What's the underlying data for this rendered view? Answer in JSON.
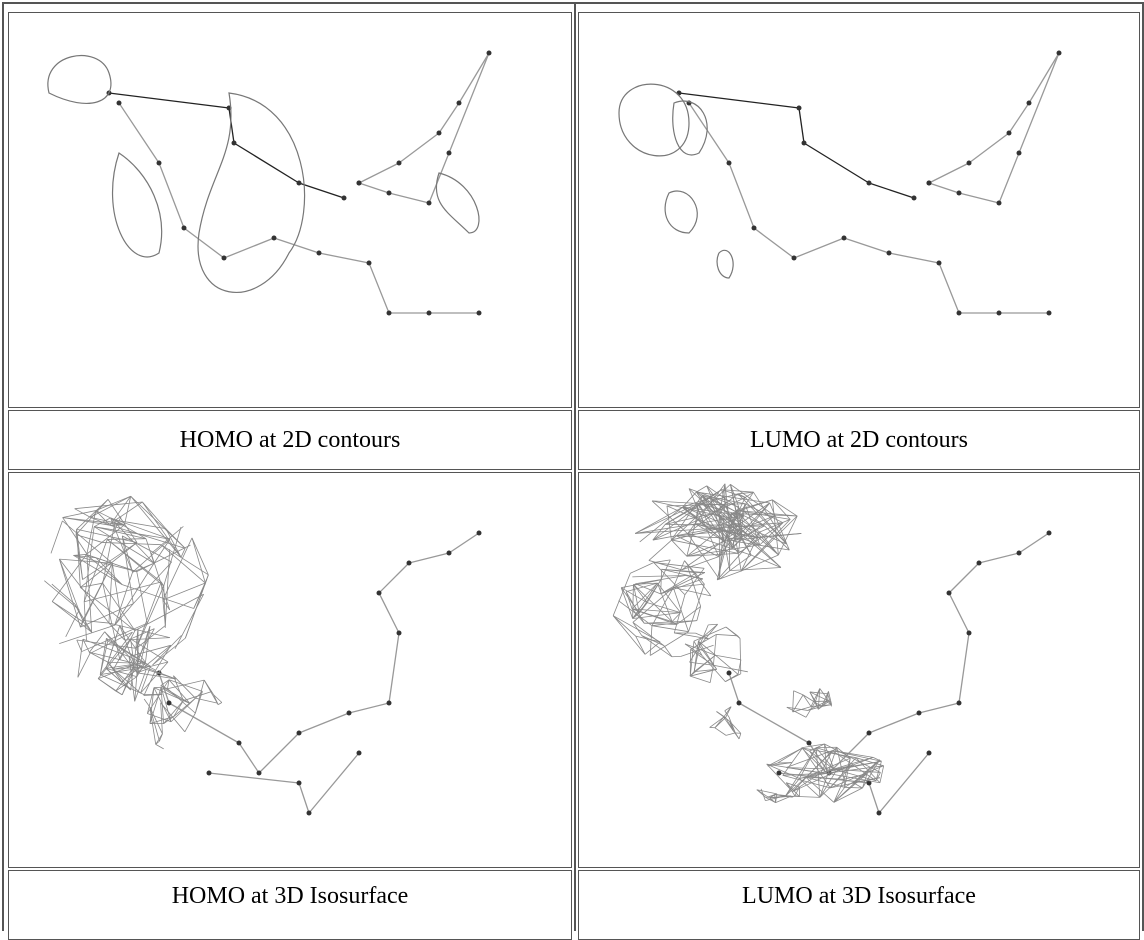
{
  "table": {
    "rows": [
      [
        "HOMO at 2D contours",
        "LUMO at 2D contours"
      ],
      [
        "HOMO at 3D Isosurface",
        "LUMO at 3D Isosurface"
      ]
    ]
  }
}
